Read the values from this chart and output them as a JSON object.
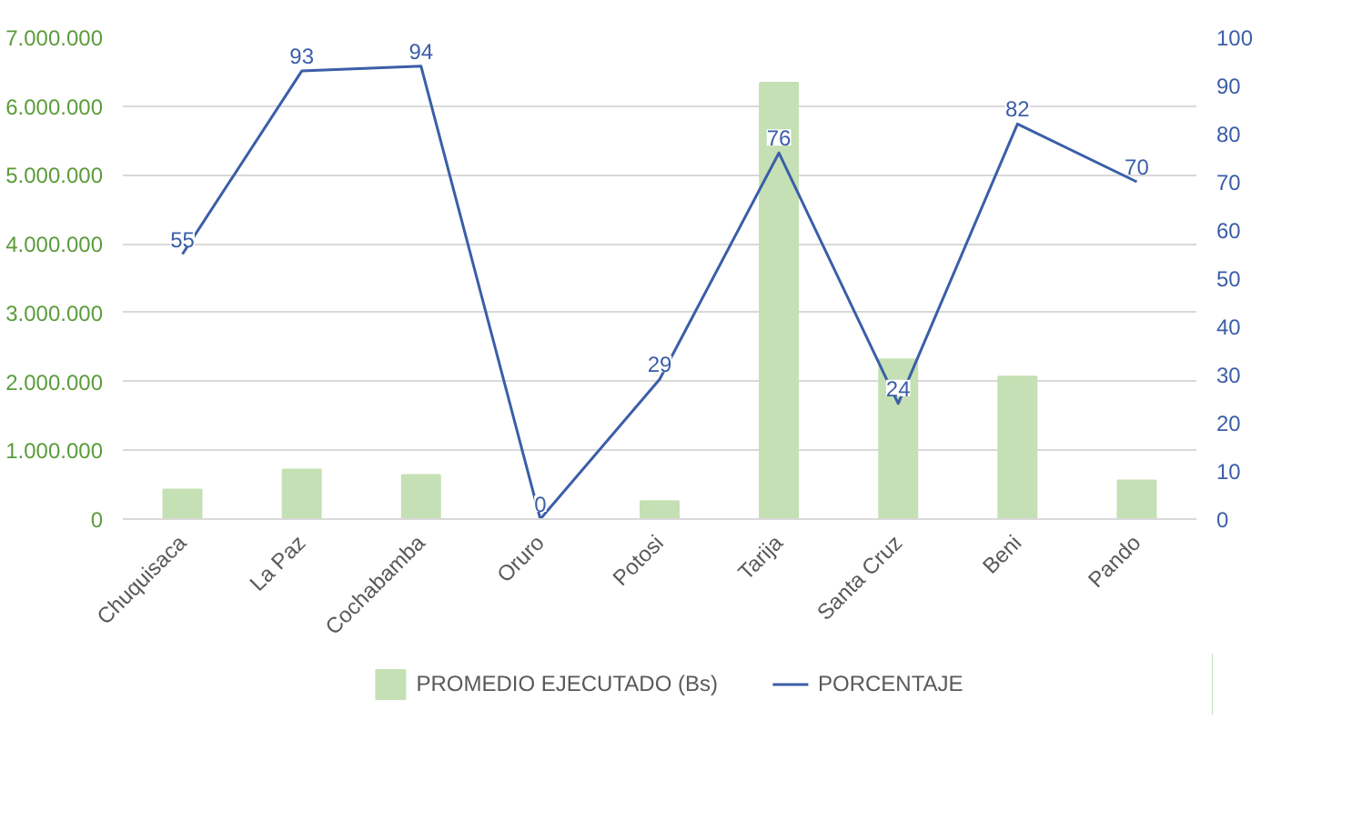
{
  "chart_data": {
    "type": "bar",
    "categories": [
      "Chuquisaca",
      "La Paz",
      "Cochabamba",
      "Oruro",
      "Potosi",
      "Tarija",
      "Santa Cruz",
      "Beni",
      "Pando"
    ],
    "series": [
      {
        "name": "PROMEDIO EJECUTADO (Bs)",
        "color": "#c5e0b4",
        "values": [
          430000,
          720000,
          640000,
          0,
          260000,
          6340000,
          2320000,
          2070000,
          560000
        ]
      },
      {
        "name": "PORCENTAJE",
        "type": "line",
        "axis": "y2",
        "color": "#3b5ea8",
        "data_labels": true,
        "values": [
          55,
          93,
          94,
          0,
          29,
          76,
          24,
          82,
          70
        ]
      }
    ],
    "ylim": [
      0,
      7000000
    ],
    "yticks": [
      {
        "value": 0,
        "label": "0"
      },
      {
        "value": 1000000,
        "label": "1.000.000"
      },
      {
        "value": 2000000,
        "label": "2.000.000"
      },
      {
        "value": 3000000,
        "label": "3.000.000"
      },
      {
        "value": 4000000,
        "label": "4.000.000"
      },
      {
        "value": 5000000,
        "label": "5.000.000"
      },
      {
        "value": 6000000,
        "label": "6.000.000"
      },
      {
        "value": 7000000,
        "label": "7.000.000"
      }
    ],
    "y2lim": [
      0,
      100
    ],
    "y2ticks": [
      0,
      10,
      20,
      30,
      40,
      50,
      60,
      70,
      80,
      90,
      100
    ],
    "grid": "y",
    "legend": "bottom",
    "marker": "none",
    "line_style": "solid"
  }
}
